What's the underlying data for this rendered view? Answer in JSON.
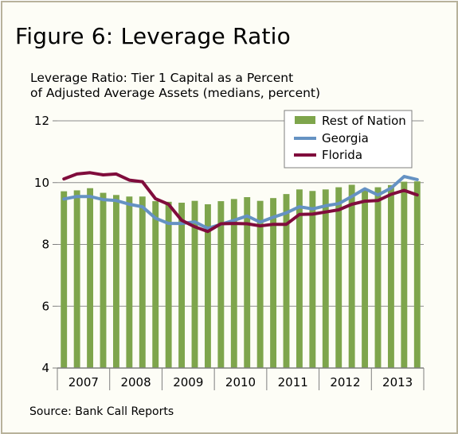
{
  "figure_title": "Figure 6: Leverage Ratio",
  "chart_title_line1": "Leverage Ratio: Tier 1 Capital as a Percent",
  "chart_title_line2": "of Adjusted Average Assets (medians, percent)",
  "source": "Source: Bank Call Reports",
  "colors": {
    "rest_of_nation": "#7ea54c",
    "georgia": "#6592c3",
    "florida": "#800c3c",
    "background": "#fdfdf6",
    "border": "#b8b29b"
  },
  "chart_data": {
    "type": "bar",
    "ylim": [
      4,
      12
    ],
    "yticks": [
      4,
      6,
      8,
      10,
      12
    ],
    "grid": true,
    "legend_position": "top-right",
    "x_labels": [
      "2007",
      "2008",
      "2009",
      "2010",
      "2011",
      "2012",
      "2013"
    ],
    "series": [
      {
        "name": "Rest of Nation",
        "type": "bar",
        "values": [
          9.72,
          9.75,
          9.82,
          9.67,
          9.6,
          9.55,
          9.55,
          9.4,
          9.38,
          9.35,
          9.41,
          9.3,
          9.4,
          9.47,
          9.53,
          9.41,
          9.5,
          9.63,
          9.78,
          9.73,
          9.78,
          9.85,
          9.93,
          9.8,
          9.85,
          9.92,
          10.03,
          10.04
        ]
      },
      {
        "name": "Georgia",
        "type": "line",
        "values": [
          9.47,
          9.55,
          9.55,
          9.45,
          9.42,
          9.3,
          9.22,
          8.85,
          8.68,
          8.68,
          8.73,
          8.52,
          8.65,
          8.78,
          8.92,
          8.72,
          8.88,
          9.02,
          9.22,
          9.15,
          9.25,
          9.32,
          9.55,
          9.8,
          9.6,
          9.82,
          10.2,
          10.1
        ]
      },
      {
        "name": "Florida",
        "type": "line",
        "values": [
          10.12,
          10.28,
          10.32,
          10.25,
          10.28,
          10.08,
          10.03,
          9.48,
          9.3,
          8.78,
          8.57,
          8.42,
          8.67,
          8.68,
          8.67,
          8.6,
          8.65,
          8.65,
          8.97,
          8.98,
          9.05,
          9.12,
          9.3,
          9.4,
          9.42,
          9.62,
          9.75,
          9.6
        ]
      }
    ]
  }
}
